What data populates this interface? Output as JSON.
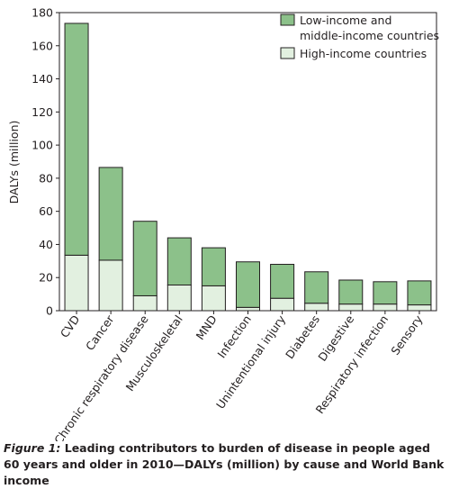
{
  "chart_data": {
    "type": "bar",
    "stacked": true,
    "ylabel": "DALYs (million)",
    "ylim": [
      0,
      180
    ],
    "yticks": [
      0,
      20,
      40,
      60,
      80,
      100,
      120,
      140,
      160,
      180
    ],
    "categories": [
      "CVD",
      "Cancer",
      "Chronic respiratory disease",
      "Musculoskeletal",
      "MND",
      "Infection",
      "Unintentional injury",
      "Diabetes",
      "Digestive",
      "Respiratory infection",
      "Sensory"
    ],
    "series": [
      {
        "name": "High-income countries",
        "color": "#e2f0e0",
        "values": [
          33.5,
          30.5,
          9,
          15.5,
          15,
          2,
          7.5,
          4.5,
          4,
          4,
          3.5
        ]
      },
      {
        "name": "Low-income and\nmiddle-income countries",
        "color": "#8cc18a",
        "values": [
          140,
          56,
          45,
          28.5,
          23,
          27.5,
          20.5,
          19,
          14.5,
          13.5,
          14.5
        ]
      }
    ],
    "grid": false,
    "legend": "top-right"
  },
  "caption": {
    "label": "Figure 1:",
    "text": " Leading contributors to burden of disease in people aged 60 years and older in 2010—DALYs (million) by cause and World Bank income"
  }
}
